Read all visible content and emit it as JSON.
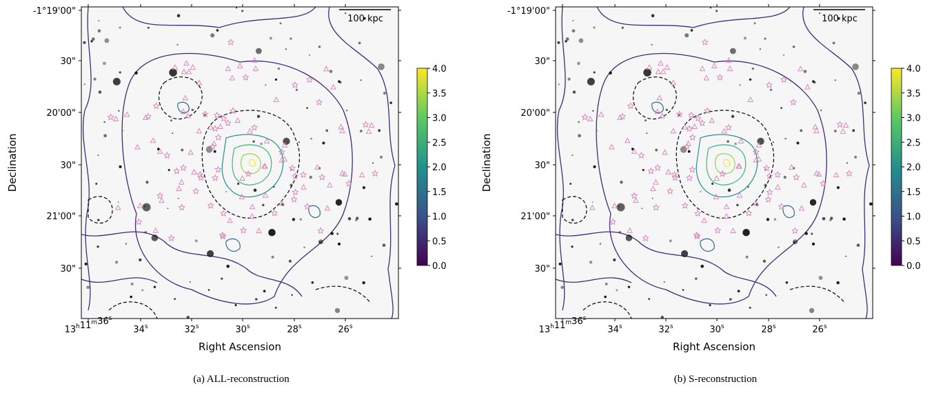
{
  "panels": [
    {
      "caption": "(a) ALL-reconstruction",
      "x_axis_label": "Right Ascension",
      "y_axis_label": "Declination",
      "scale_bar": "100 kpc",
      "y_ticks": [
        "-1°19'00\"",
        "30\"",
        "20'00\"",
        "30\"",
        "21'00\"",
        "30\""
      ],
      "x_ticks": [
        [
          [
            "13",
            "h"
          ],
          [
            "11",
            "m"
          ],
          [
            "36",
            "s"
          ]
        ],
        [
          [
            "34",
            "s"
          ]
        ],
        [
          [
            "32",
            "s"
          ]
        ],
        [
          [
            "30",
            "s"
          ]
        ],
        [
          [
            "28",
            "s"
          ]
        ],
        [
          [
            "26",
            "s"
          ]
        ]
      ],
      "colorbar_ticks": [
        {
          "value": 0,
          "label": "0.0"
        },
        {
          "value": 0.5,
          "label": "0.5"
        },
        {
          "value": 1,
          "label": "1.0"
        },
        {
          "value": 1.5,
          "label": "1.5"
        },
        {
          "value": 2,
          "label": "2.0"
        },
        {
          "value": 2.5,
          "label": "2.5"
        },
        {
          "value": 3,
          "label": "3.0"
        },
        {
          "value": 3.5,
          "label": "3.5"
        },
        {
          "value": 4,
          "label": "4.0"
        }
      ]
    },
    {
      "caption": "(b) S-reconstruction",
      "x_axis_label": "Right Ascension",
      "y_axis_label": "Declination",
      "scale_bar": "100 kpc",
      "y_ticks": [
        "-1°19'00\"",
        "30\"",
        "20'00\"",
        "30\"",
        "21'00\"",
        "30\""
      ],
      "x_ticks": [
        [
          [
            "13",
            "h"
          ],
          [
            "11",
            "m"
          ],
          [
            "36",
            "s"
          ]
        ],
        [
          [
            "34",
            "s"
          ]
        ],
        [
          [
            "32",
            "s"
          ]
        ],
        [
          [
            "30",
            "s"
          ]
        ],
        [
          [
            "28",
            "s"
          ]
        ],
        [
          [
            "26",
            "s"
          ]
        ]
      ],
      "colorbar_ticks": [
        {
          "value": 0,
          "label": "0.0"
        },
        {
          "value": 0.5,
          "label": "0.5"
        },
        {
          "value": 1,
          "label": "1.0"
        },
        {
          "value": 1.5,
          "label": "1.5"
        },
        {
          "value": 2,
          "label": "2.0"
        },
        {
          "value": 2.5,
          "label": "2.5"
        },
        {
          "value": 3,
          "label": "3.0"
        },
        {
          "value": 3.5,
          "label": "3.5"
        },
        {
          "value": 4,
          "label": "4.0"
        }
      ]
    }
  ]
}
